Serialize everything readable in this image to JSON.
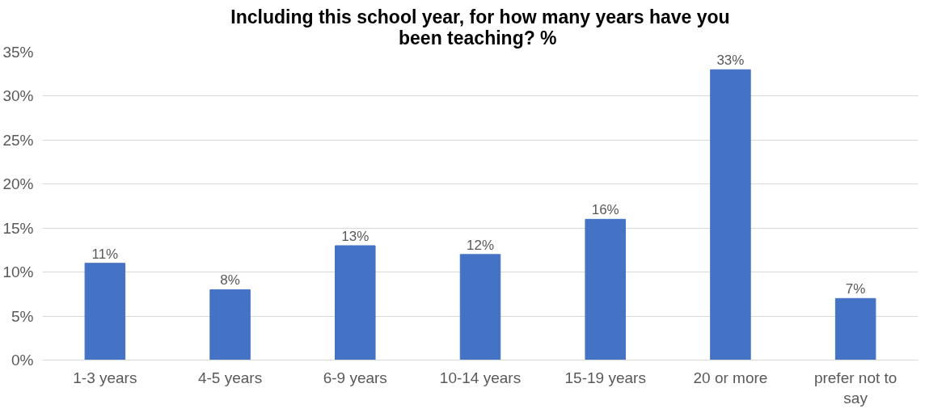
{
  "chart_data": {
    "type": "bar",
    "title": "Including this school year, for how many years have you\nbeen teaching?  %",
    "categories": [
      "1-3 years",
      "4-5 years",
      "6-9 years",
      "10-14 years",
      "15-19 years",
      "20 or more",
      "prefer not to say"
    ],
    "values": [
      11,
      8,
      13,
      12,
      16,
      33,
      7
    ],
    "value_labels": [
      "11%",
      "8%",
      "13%",
      "12%",
      "16%",
      "33%",
      "7%"
    ],
    "color": "#4472c4",
    "ylim": [
      0,
      35
    ],
    "yticks": [
      {
        "value": 0,
        "label": "0%"
      },
      {
        "value": 5,
        "label": "5%"
      },
      {
        "value": 10,
        "label": "10%"
      },
      {
        "value": 15,
        "label": "15%"
      },
      {
        "value": 20,
        "label": "20%"
      },
      {
        "value": 25,
        "label": "25%"
      },
      {
        "value": 30,
        "label": "30%"
      },
      {
        "value": 35,
        "label": "35%"
      }
    ],
    "grid": "y"
  }
}
